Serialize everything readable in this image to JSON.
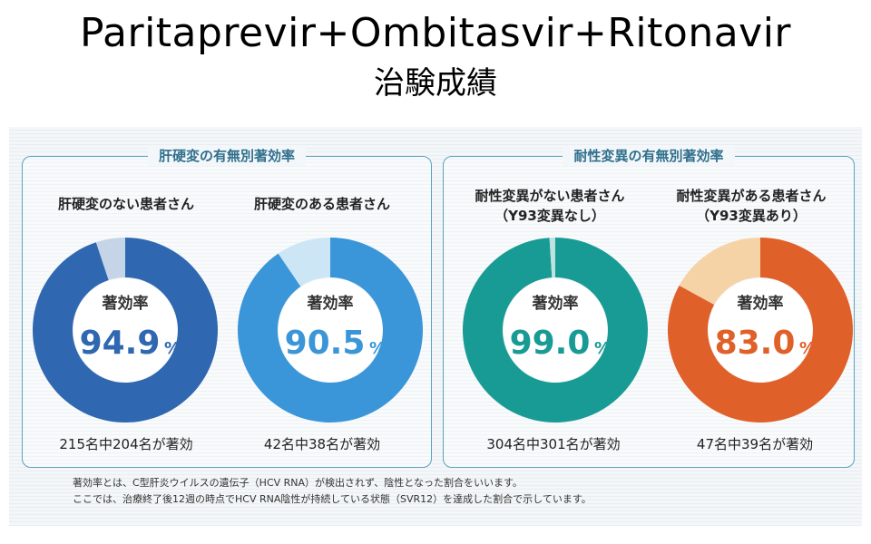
{
  "slide": {
    "title": "Paritaprevir+Ombitasvir+Ritonavir",
    "subtitle": "治験成績"
  },
  "panels": [
    {
      "heading": "肝硬変の有無別著効率"
    },
    {
      "heading": "耐性変異の有無別著効率"
    }
  ],
  "colors": {
    "blue_dark": "#2f68b0",
    "blue_light": "#3a96d8",
    "teal": "#199b95",
    "orange": "#e0602a"
  },
  "chart_data": [
    {
      "type": "pie",
      "caption_lines": [
        "肝硬変のない患者さん"
      ],
      "center_label": "著効率",
      "value": 94.9,
      "value_text": "94.9",
      "unit": "%",
      "count_text": "215名中204名が著効",
      "color": "#2f68b0",
      "remainder_color": "#c6d4e8"
    },
    {
      "type": "pie",
      "caption_lines": [
        "肝硬変のある患者さん"
      ],
      "center_label": "著効率",
      "value": 90.5,
      "value_text": "90.5",
      "unit": "%",
      "count_text": "42名中38名が著効",
      "color": "#3a96d8",
      "remainder_color": "#cde6f5"
    },
    {
      "type": "pie",
      "caption_lines": [
        "耐性変異がない患者さん",
        "（Y93変異なし）"
      ],
      "center_label": "著効率",
      "value": 99.0,
      "value_text": "99.0",
      "unit": "%",
      "count_text": "304名中301名が著効",
      "color": "#199b95",
      "remainder_color": "#bfe2df"
    },
    {
      "type": "pie",
      "caption_lines": [
        "耐性変異がある患者さん",
        "（Y93変異あり）"
      ],
      "center_label": "著効率",
      "value": 83.0,
      "value_text": "83.0",
      "unit": "%",
      "count_text": "47名中39名が著効",
      "color": "#e0602a",
      "remainder_color": "#f6d3a6"
    }
  ],
  "footnotes": [
    "著効率とは、C型肝炎ウイルスの遺伝子（HCV RNA）が検出されず、陰性となった割合をいいます。",
    "ここでは、治療終了後12週の時点でHCV RNA陰性が持続している状態（SVR12）を達成した割合で示しています。"
  ]
}
